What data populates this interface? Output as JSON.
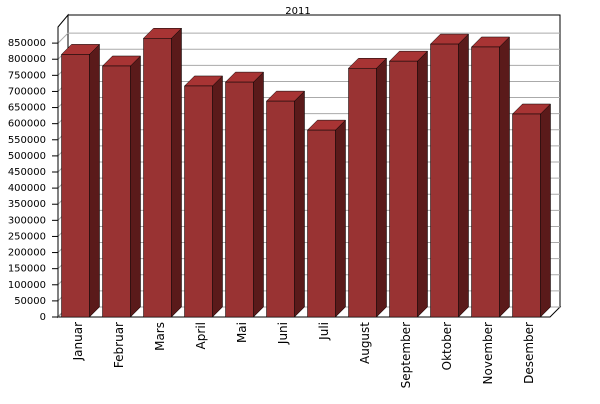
{
  "chart_data": {
    "type": "bar3d",
    "title": "2011",
    "categories": [
      "Januar",
      "Februar",
      "Mars",
      "April",
      "Mai",
      "Juni",
      "Juli",
      "August",
      "September",
      "Oktober",
      "November",
      "Desember"
    ],
    "values": [
      815000,
      779000,
      865000,
      717000,
      729000,
      670000,
      580000,
      772000,
      794000,
      847000,
      838000,
      630000
    ],
    "color": "#993333",
    "ylim": [
      0,
      900000
    ],
    "yticks": [
      0,
      50000,
      100000,
      150000,
      200000,
      250000,
      300000,
      350000,
      400000,
      450000,
      500000,
      550000,
      600000,
      650000,
      700000,
      750000,
      800000,
      850000
    ],
    "grid": true
  }
}
